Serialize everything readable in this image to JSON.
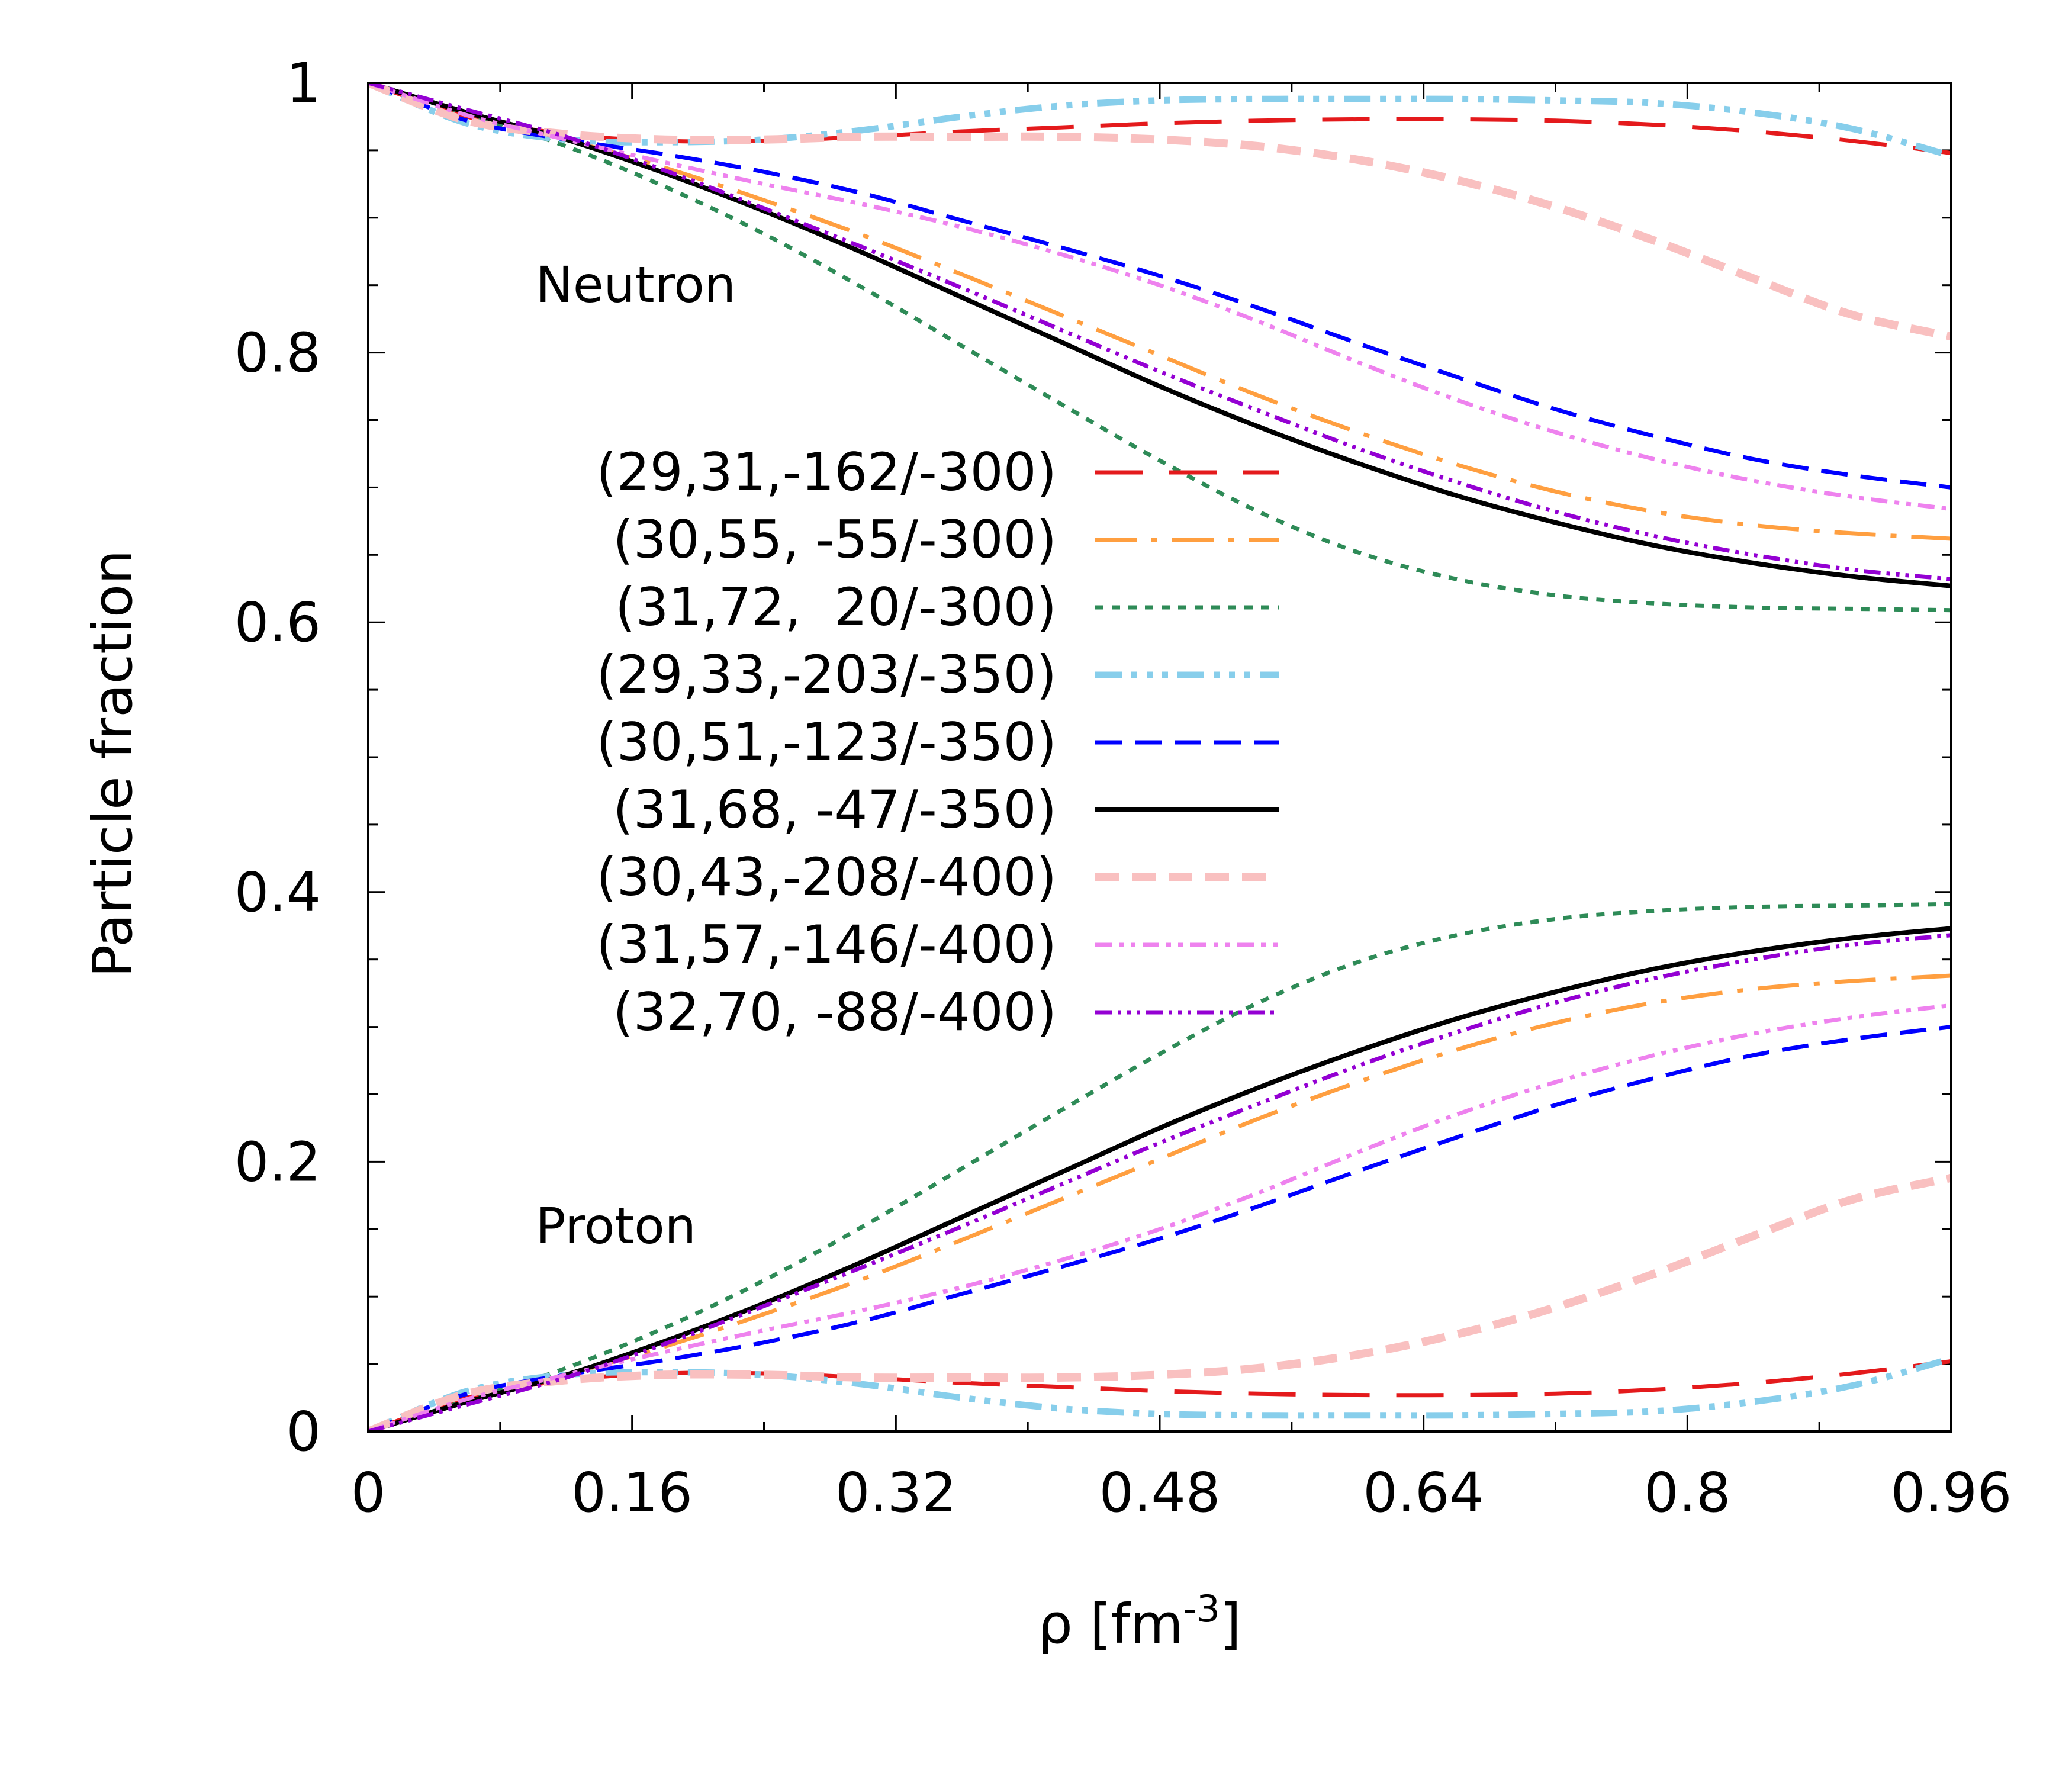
{
  "chart_data": {
    "type": "line",
    "xlabel": "ρ [fm",
    "xlabel_sup": "-3",
    "xlabel_close": "]",
    "ylabel": "Particle fraction",
    "xlim": [
      0,
      0.96
    ],
    "ylim": [
      0,
      1
    ],
    "xticks": [
      0,
      0.16,
      0.32,
      0.48,
      0.64,
      0.8,
      0.96
    ],
    "xtick_labels": [
      "0",
      "0.16",
      "0.32",
      "0.48",
      "0.64",
      "0.8",
      "0.96"
    ],
    "yticks": [
      0,
      0.2,
      0.4,
      0.6,
      0.8,
      1
    ],
    "ytick_labels": [
      "0",
      "0.2",
      "0.4",
      "0.6",
      "0.8",
      "1"
    ],
    "annotations": [
      {
        "text": "Neutron",
        "x": 0.1,
        "y": 0.85
      },
      {
        "text": "Proton",
        "x": 0.1,
        "y": 0.15
      }
    ],
    "x": [
      0,
      0.06,
      0.12,
      0.18,
      0.24,
      0.3,
      0.36,
      0.42,
      0.48,
      0.54,
      0.6,
      0.66,
      0.72,
      0.78,
      0.84,
      0.9,
      0.96
    ],
    "series": [
      {
        "name": "(29,31,-162/-300)",
        "color": "#e41a1c",
        "dash": "80,45",
        "width": 7,
        "neutron": [
          1.0,
          0.975,
          0.962,
          0.957,
          0.957,
          0.96,
          0.964,
          0.967,
          0.97,
          0.972,
          0.973,
          0.973,
          0.972,
          0.969,
          0.964,
          0.957,
          0.948
        ],
        "proton": [
          0.0,
          0.025,
          0.038,
          0.043,
          0.043,
          0.04,
          0.036,
          0.033,
          0.03,
          0.028,
          0.027,
          0.027,
          0.028,
          0.031,
          0.036,
          0.043,
          0.052
        ]
      },
      {
        "name": "(30,55, -55/-300)",
        "color": "#ff9f40",
        "dash": "70,25,10,25",
        "width": 7,
        "neutron": [
          1.0,
          0.978,
          0.958,
          0.937,
          0.913,
          0.887,
          0.858,
          0.828,
          0.798,
          0.768,
          0.741,
          0.717,
          0.697,
          0.682,
          0.672,
          0.666,
          0.662
        ],
        "proton": [
          0.0,
          0.022,
          0.042,
          0.063,
          0.087,
          0.113,
          0.142,
          0.172,
          0.202,
          0.232,
          0.259,
          0.283,
          0.303,
          0.318,
          0.328,
          0.334,
          0.338
        ]
      },
      {
        "name": "(31,72,  20/-300)",
        "color": "#2e8b57",
        "dash": "14,14",
        "width": 7,
        "neutron": [
          1.0,
          0.977,
          0.953,
          0.923,
          0.888,
          0.848,
          0.805,
          0.762,
          0.72,
          0.682,
          0.652,
          0.632,
          0.62,
          0.614,
          0.611,
          0.61,
          0.609
        ],
        "proton": [
          0.0,
          0.023,
          0.047,
          0.077,
          0.112,
          0.152,
          0.195,
          0.238,
          0.28,
          0.318,
          0.348,
          0.368,
          0.38,
          0.386,
          0.389,
          0.39,
          0.391
        ]
      },
      {
        "name": "(29,33,-203/-350)",
        "color": "#87ceeb",
        "dash": "45,16,10,16,10,16,10,16",
        "width": 11,
        "neutron": [
          1.0,
          0.97,
          0.958,
          0.956,
          0.958,
          0.965,
          0.975,
          0.983,
          0.987,
          0.988,
          0.988,
          0.988,
          0.987,
          0.985,
          0.978,
          0.966,
          0.946
        ],
        "proton": [
          0.0,
          0.03,
          0.042,
          0.044,
          0.042,
          0.035,
          0.025,
          0.017,
          0.013,
          0.012,
          0.012,
          0.012,
          0.013,
          0.015,
          0.022,
          0.034,
          0.054
        ]
      },
      {
        "name": "(30,51,-123/-350)",
        "color": "#0000ff",
        "dash": "45,22",
        "width": 7,
        "neutron": [
          1.0,
          0.972,
          0.958,
          0.947,
          0.934,
          0.918,
          0.898,
          0.878,
          0.857,
          0.833,
          0.807,
          0.782,
          0.758,
          0.738,
          0.721,
          0.709,
          0.7
        ],
        "proton": [
          0.0,
          0.028,
          0.042,
          0.053,
          0.066,
          0.082,
          0.102,
          0.122,
          0.143,
          0.167,
          0.193,
          0.218,
          0.242,
          0.262,
          0.279,
          0.291,
          0.3
        ]
      },
      {
        "name": "(31,68, -47/-350)",
        "color": "#000000",
        "dash": "",
        "width": 8,
        "neutron": [
          1.0,
          0.978,
          0.958,
          0.933,
          0.905,
          0.874,
          0.841,
          0.808,
          0.775,
          0.745,
          0.718,
          0.694,
          0.674,
          0.657,
          0.644,
          0.634,
          0.627
        ],
        "proton": [
          0.0,
          0.022,
          0.042,
          0.067,
          0.095,
          0.126,
          0.159,
          0.192,
          0.225,
          0.255,
          0.282,
          0.306,
          0.326,
          0.343,
          0.356,
          0.366,
          0.373
        ]
      },
      {
        "name": "(30,43,-208/-400)",
        "color": "#f9c0c0",
        "dash": "40,22",
        "width": 14,
        "neutron": [
          1.0,
          0.972,
          0.962,
          0.958,
          0.958,
          0.96,
          0.96,
          0.96,
          0.958,
          0.953,
          0.943,
          0.928,
          0.908,
          0.883,
          0.855,
          0.828,
          0.812
        ],
        "proton": [
          0.0,
          0.028,
          0.038,
          0.042,
          0.042,
          0.04,
          0.04,
          0.04,
          0.042,
          0.047,
          0.057,
          0.072,
          0.092,
          0.117,
          0.145,
          0.172,
          0.188
        ]
      },
      {
        "name": "(31,57,-146/-400)",
        "color": "#ee82ee",
        "dash": "28,12,8,12,8,12",
        "width": 7,
        "neutron": [
          1.0,
          0.976,
          0.958,
          0.941,
          0.925,
          0.91,
          0.893,
          0.873,
          0.85,
          0.823,
          0.793,
          0.765,
          0.741,
          0.721,
          0.705,
          0.693,
          0.684
        ],
        "proton": [
          0.0,
          0.024,
          0.042,
          0.059,
          0.075,
          0.09,
          0.107,
          0.127,
          0.15,
          0.177,
          0.207,
          0.235,
          0.259,
          0.279,
          0.295,
          0.307,
          0.316
        ]
      },
      {
        "name": "(32,70, -88/-400)",
        "color": "#9400d3",
        "dash": "28,10,6,10,6,10,6,10",
        "width": 7,
        "neutron": [
          1.0,
          0.98,
          0.96,
          0.935,
          0.907,
          0.878,
          0.848,
          0.817,
          0.786,
          0.757,
          0.729,
          0.704,
          0.682,
          0.664,
          0.65,
          0.639,
          0.632
        ],
        "proton": [
          0.0,
          0.02,
          0.04,
          0.065,
          0.093,
          0.122,
          0.152,
          0.183,
          0.214,
          0.243,
          0.271,
          0.296,
          0.318,
          0.336,
          0.35,
          0.361,
          0.368
        ]
      }
    ]
  }
}
